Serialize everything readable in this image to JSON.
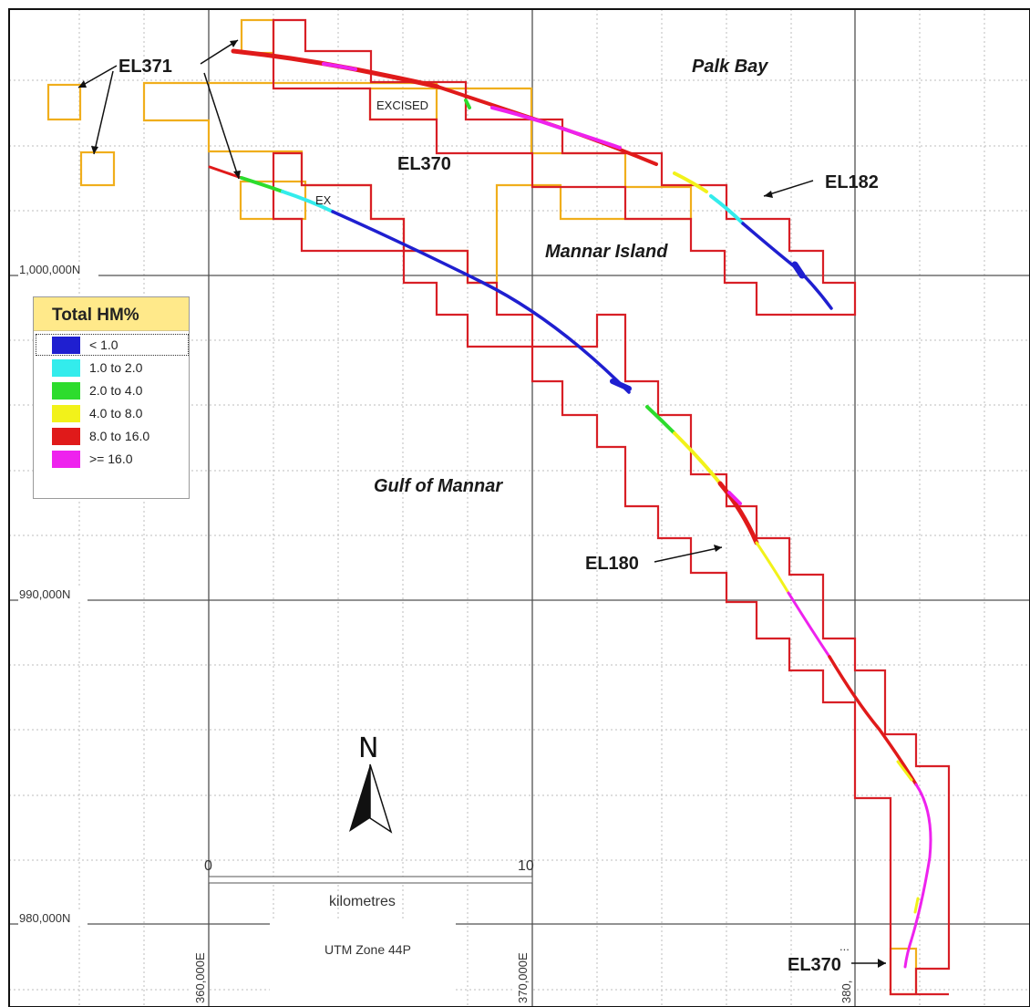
{
  "grid_labels": {
    "northing_1000000": "1,000,000N",
    "northing_990000": "990,000N",
    "northing_980000": "980,000N",
    "easting_360000": "360,000E",
    "easting_370000": "370,000E",
    "easting_380000": "380,"
  },
  "place_names": {
    "palk_bay": "Palk Bay",
    "mannar_island": "Mannar Island",
    "gulf_of_mannar": "Gulf of Mannar"
  },
  "tenements": {
    "el371": "EL371",
    "el370_north": "EL370",
    "el182": "EL182",
    "el180": "EL180",
    "el370_south": "EL370",
    "excised": "EXCISED",
    "ex": "EX"
  },
  "scale_bar": {
    "start": "0",
    "end": "10",
    "unit": "kilometres"
  },
  "projection": "UTM Zone 44P",
  "north_arrow": "N",
  "legend": {
    "title": "Total HM%",
    "items": [
      {
        "label": "< 1.0",
        "color": "#1f1fd0"
      },
      {
        "label": "1.0 to 2.0",
        "color": "#33ecec"
      },
      {
        "label": "2.0 to 4.0",
        "color": "#2ddc2d"
      },
      {
        "label": "4.0 to 8.0",
        "color": "#f2f21a"
      },
      {
        "label": "8.0 to 16.0",
        "color": "#e01a1a"
      },
      {
        "label": ">= 16.0",
        "color": "#ee22ee"
      }
    ]
  },
  "colors": {
    "el180_el182_boundary": "#d81f26",
    "el370_el371_boundary": "#f0ae1c",
    "grid_major": "#505050",
    "grid_minor": "#bdbdbd",
    "legend_header": "#ffe98a"
  }
}
